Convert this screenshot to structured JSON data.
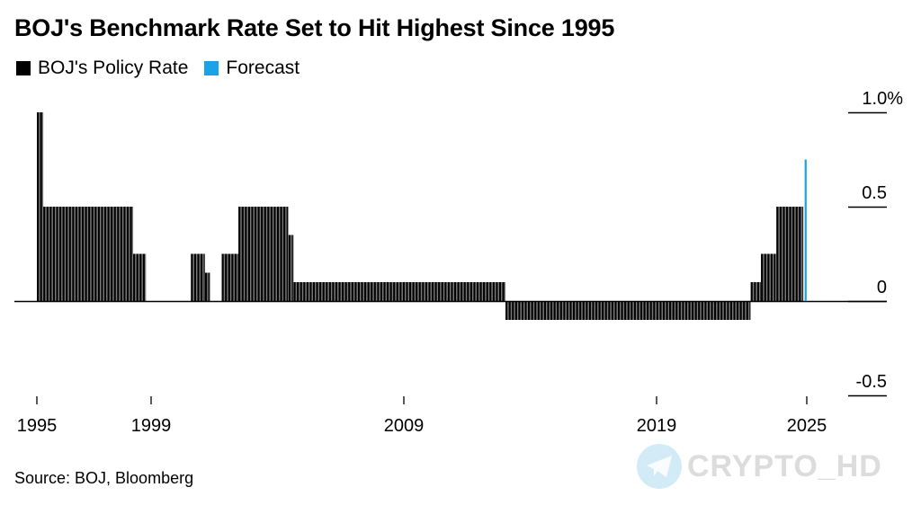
{
  "header": {
    "title": "BOJ's Benchmark Rate Set to Hit Highest Since 1995"
  },
  "legend": [
    {
      "label": "BOJ's Policy Rate",
      "color": "#000000"
    },
    {
      "label": "Forecast",
      "color": "#1aa3e8"
    }
  ],
  "footer": {
    "source": "Source: BOJ, Bloomberg"
  },
  "watermark": {
    "icon": "telegram-icon",
    "text": "CRYPTO_HD"
  },
  "chart_data": {
    "type": "bar",
    "title": "BOJ's Benchmark Rate Set to Hit Highest Since 1995",
    "xlabel": "",
    "ylabel": "",
    "ylim": [
      -0.5,
      1.0
    ],
    "xlim": [
      1995,
      2026.5
    ],
    "y_ticks": [
      {
        "value": 1.0,
        "label": "1.0%"
      },
      {
        "value": 0.5,
        "label": "0.5"
      },
      {
        "value": 0,
        "label": "0"
      },
      {
        "value": -0.5,
        "label": "-0.5"
      }
    ],
    "x_ticks": [
      {
        "value": 1995,
        "label": "1995"
      },
      {
        "value": 1999,
        "label": "1999"
      },
      {
        "value": 2009,
        "label": "2009"
      },
      {
        "value": 2019,
        "label": "2019"
      },
      {
        "value": 2025,
        "label": "2025"
      }
    ],
    "grid": false,
    "legend_position": "top-left",
    "series": [
      {
        "name": "BOJ's Policy Rate",
        "color": "#000000",
        "segments": [
          {
            "start": 1995.0,
            "end": 1995.25,
            "value": 1.0
          },
          {
            "start": 1995.25,
            "end": 1998.75,
            "value": 0.5
          },
          {
            "start": 1998.75,
            "end": 1999.25,
            "value": 0.25
          },
          {
            "start": 1999.25,
            "end": 2001.0,
            "value": 0
          },
          {
            "start": 2001.0,
            "end": 2001.55,
            "value": 0.25
          },
          {
            "start": 2001.55,
            "end": 2001.75,
            "value": 0.15
          },
          {
            "start": 2001.75,
            "end": 2002.2,
            "value": 0
          },
          {
            "start": 2002.2,
            "end": 2002.85,
            "value": 0.25
          },
          {
            "start": 2002.85,
            "end": 2004.8,
            "value": 0.5
          },
          {
            "start": 2004.8,
            "end": 2005.0,
            "value": 0.35
          },
          {
            "start": 2005.0,
            "end": 2013.25,
            "value": 0.1
          },
          {
            "start": 2013.25,
            "end": 2022.8,
            "value": -0.1
          },
          {
            "start": 2022.8,
            "end": 2023.2,
            "value": 0.1
          },
          {
            "start": 2023.2,
            "end": 2023.8,
            "value": 0.25
          },
          {
            "start": 2023.8,
            "end": 2024.85,
            "value": 0.5
          }
        ]
      },
      {
        "name": "Forecast",
        "color": "#1aa3e8",
        "points": [
          {
            "x": 2024.9,
            "value": 0.75
          }
        ]
      }
    ]
  }
}
